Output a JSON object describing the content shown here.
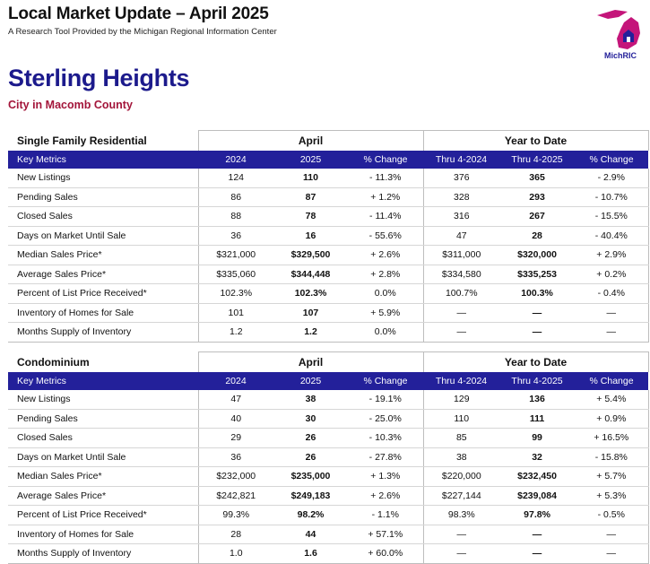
{
  "header": {
    "title": "Local Market Update – April 2025",
    "subtitle": "A Research Tool Provided by the Michigan Regional Information Center",
    "logo_text": "Michigan Regional Information Center MichRIC"
  },
  "location": {
    "city": "Sterling Heights",
    "county": "City in Macomb County"
  },
  "colors": {
    "navy": "#23209a",
    "title_blue": "#1c1a8c",
    "county_red": "#a3153a",
    "logo_magenta": "#c4157a"
  },
  "tables": [
    {
      "section": "Single Family Residential",
      "group_april": "April",
      "group_ytd": "Year to Date",
      "columns": [
        "Key Metrics",
        "2024",
        "2025",
        "% Change",
        "Thru 4-2024",
        "Thru 4-2025",
        "% Change"
      ],
      "rows": [
        {
          "metric": "New Listings",
          "a2024": "124",
          "a2025": "110",
          "apct": "- 11.3%",
          "y2024": "376",
          "y2025": "365",
          "ypct": "- 2.9%"
        },
        {
          "metric": "Pending Sales",
          "a2024": "86",
          "a2025": "87",
          "apct": "+ 1.2%",
          "y2024": "328",
          "y2025": "293",
          "ypct": "- 10.7%"
        },
        {
          "metric": "Closed Sales",
          "a2024": "88",
          "a2025": "78",
          "apct": "- 11.4%",
          "y2024": "316",
          "y2025": "267",
          "ypct": "- 15.5%"
        },
        {
          "metric": "Days on Market Until Sale",
          "a2024": "36",
          "a2025": "16",
          "apct": "- 55.6%",
          "y2024": "47",
          "y2025": "28",
          "ypct": "- 40.4%"
        },
        {
          "metric": "Median Sales Price*",
          "a2024": "$321,000",
          "a2025": "$329,500",
          "apct": "+ 2.6%",
          "y2024": "$311,000",
          "y2025": "$320,000",
          "ypct": "+ 2.9%"
        },
        {
          "metric": "Average Sales Price*",
          "a2024": "$335,060",
          "a2025": "$344,448",
          "apct": "+ 2.8%",
          "y2024": "$334,580",
          "y2025": "$335,253",
          "ypct": "+ 0.2%"
        },
        {
          "metric": "Percent of List Price Received*",
          "a2024": "102.3%",
          "a2025": "102.3%",
          "apct": "0.0%",
          "y2024": "100.7%",
          "y2025": "100.3%",
          "ypct": "- 0.4%"
        },
        {
          "metric": "Inventory of Homes for Sale",
          "a2024": "101",
          "a2025": "107",
          "apct": "+ 5.9%",
          "y2024": "—",
          "y2025": "—",
          "ypct": "—"
        },
        {
          "metric": "Months Supply of Inventory",
          "a2024": "1.2",
          "a2025": "1.2",
          "apct": "0.0%",
          "y2024": "—",
          "y2025": "—",
          "ypct": "—"
        }
      ]
    },
    {
      "section": "Condominium",
      "group_april": "April",
      "group_ytd": "Year to Date",
      "columns": [
        "Key Metrics",
        "2024",
        "2025",
        "% Change",
        "Thru 4-2024",
        "Thru 4-2025",
        "% Change"
      ],
      "rows": [
        {
          "metric": "New Listings",
          "a2024": "47",
          "a2025": "38",
          "apct": "- 19.1%",
          "y2024": "129",
          "y2025": "136",
          "ypct": "+ 5.4%"
        },
        {
          "metric": "Pending Sales",
          "a2024": "40",
          "a2025": "30",
          "apct": "- 25.0%",
          "y2024": "110",
          "y2025": "111",
          "ypct": "+ 0.9%"
        },
        {
          "metric": "Closed Sales",
          "a2024": "29",
          "a2025": "26",
          "apct": "- 10.3%",
          "y2024": "85",
          "y2025": "99",
          "ypct": "+ 16.5%"
        },
        {
          "metric": "Days on Market Until Sale",
          "a2024": "36",
          "a2025": "26",
          "apct": "- 27.8%",
          "y2024": "38",
          "y2025": "32",
          "ypct": "- 15.8%"
        },
        {
          "metric": "Median Sales Price*",
          "a2024": "$232,000",
          "a2025": "$235,000",
          "apct": "+ 1.3%",
          "y2024": "$220,000",
          "y2025": "$232,450",
          "ypct": "+ 5.7%"
        },
        {
          "metric": "Average Sales Price*",
          "a2024": "$242,821",
          "a2025": "$249,183",
          "apct": "+ 2.6%",
          "y2024": "$227,144",
          "y2025": "$239,084",
          "ypct": "+ 5.3%"
        },
        {
          "metric": "Percent of List Price Received*",
          "a2024": "99.3%",
          "a2025": "98.2%",
          "apct": "- 1.1%",
          "y2024": "98.3%",
          "y2025": "97.8%",
          "ypct": "- 0.5%"
        },
        {
          "metric": "Inventory of Homes for Sale",
          "a2024": "28",
          "a2025": "44",
          "apct": "+ 57.1%",
          "y2024": "—",
          "y2025": "—",
          "ypct": "—"
        },
        {
          "metric": "Months Supply of Inventory",
          "a2024": "1.0",
          "a2025": "1.6",
          "apct": "+ 60.0%",
          "y2024": "—",
          "y2025": "—",
          "ypct": "—"
        }
      ]
    }
  ]
}
